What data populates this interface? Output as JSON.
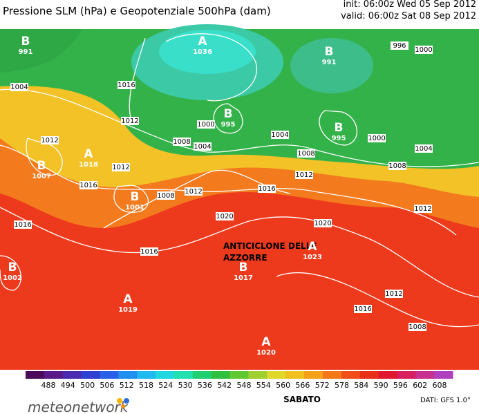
{
  "header": {
    "title": "Pressione SLM (hPa) e Geopotenziale 500hPa (dam)",
    "init": "init: 06:00z Wed 05 Sep 2012",
    "valid": "valid: 06:00z Sat 08 Sep 2012"
  },
  "map": {
    "centers": [
      {
        "letter": "B",
        "value": "991"
      },
      {
        "letter": "A",
        "value": "1036"
      },
      {
        "letter": "B",
        "value": "991"
      },
      {
        "letter": "B",
        "value": "995"
      },
      {
        "letter": "B",
        "value": "995"
      },
      {
        "letter": "A",
        "value": "1018"
      },
      {
        "letter": "B",
        "value": "1007"
      },
      {
        "letter": "B",
        "value": "1001"
      },
      {
        "letter": "B",
        "value": "1002"
      },
      {
        "letter": "A",
        "value": "1019"
      },
      {
        "letter": "B",
        "value": "1017"
      },
      {
        "letter": "A",
        "value": "1023"
      },
      {
        "letter": "A",
        "value": "1020"
      }
    ],
    "isobar_labels": [
      "1004",
      "1012",
      "1012",
      "1016",
      "1008",
      "1000",
      "1004",
      "1004",
      "1008",
      "1012",
      "1016",
      "1012",
      "1012",
      "1016",
      "1008",
      "1016",
      "1020",
      "1020",
      "1016",
      "1012",
      "1012",
      "1016",
      "1008",
      "1008",
      "1004",
      "1000",
      "996",
      "1000"
    ],
    "annotation": [
      "ANTICICLONE DELLE",
      "AZZORRE"
    ]
  },
  "legend": {
    "values": [
      488,
      494,
      500,
      506,
      512,
      518,
      524,
      530,
      536,
      542,
      548,
      554,
      560,
      566,
      572,
      578,
      584,
      590,
      596,
      602,
      608
    ]
  },
  "footer": {
    "day": "SABATO",
    "brand": "meteonetwork",
    "source": "DATI: GFS 1.0°"
  }
}
